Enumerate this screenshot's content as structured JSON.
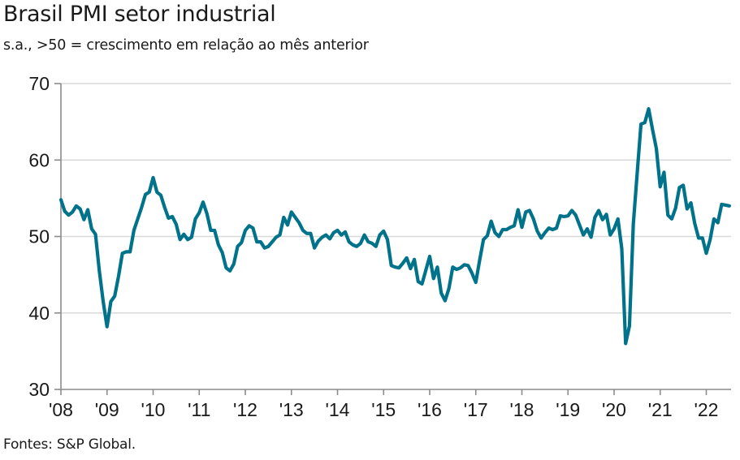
{
  "chart_data": {
    "type": "line",
    "title": "Brasil PMI setor industrial",
    "subtitle": "s.a., >50 = crescimento em relação ao mês anterior",
    "source": "Fontes: S&P Global.",
    "xlabel": "",
    "ylabel": "",
    "ylim": [
      30,
      70
    ],
    "yticks": [
      30,
      40,
      50,
      60,
      70
    ],
    "ytick_labels": [
      "30",
      "40",
      "50",
      "60",
      "70"
    ],
    "xticks": [
      2008,
      2009,
      2010,
      2011,
      2012,
      2013,
      2014,
      2015,
      2016,
      2017,
      2018,
      2019,
      2020,
      2021,
      2022
    ],
    "xtick_labels": [
      "'08",
      "'09",
      "'10",
      "'11",
      "'12",
      "'13",
      "'14",
      "'15",
      "'16",
      "'17",
      "'18",
      "'19",
      "'20",
      "'21",
      "'22"
    ],
    "grid": "horizontal",
    "legend": "none",
    "line_color": "#00728a",
    "series": [
      {
        "name": "Brasil PMI setor industrial",
        "start": "2008-01",
        "frequency": "monthly",
        "values": [
          54.8,
          53.3,
          52.8,
          53.2,
          54.0,
          53.6,
          52.2,
          53.5,
          51.0,
          50.3,
          45.5,
          41.5,
          38.2,
          41.5,
          42.2,
          44.8,
          47.8,
          48.0,
          48.0,
          50.8,
          52.3,
          53.8,
          55.5,
          55.8,
          57.7,
          55.8,
          55.4,
          53.8,
          52.4,
          52.6,
          51.6,
          49.6,
          50.3,
          49.6,
          49.9,
          52.3,
          53.1,
          54.5,
          53.0,
          50.8,
          50.8,
          48.9,
          47.9,
          45.9,
          45.5,
          46.4,
          48.7,
          49.2,
          50.8,
          51.4,
          51.1,
          49.3,
          49.3,
          48.5,
          48.7,
          49.3,
          49.9,
          50.2,
          52.5,
          51.5,
          53.2,
          52.5,
          51.8,
          50.8,
          50.4,
          50.4,
          48.5,
          49.4,
          49.9,
          50.2,
          49.7,
          50.5,
          50.8,
          50.2,
          50.6,
          49.3,
          48.9,
          48.7,
          49.1,
          50.2,
          49.3,
          49.1,
          48.7,
          50.2,
          50.7,
          49.6,
          46.2,
          46.0,
          45.9,
          46.5,
          47.2,
          45.8,
          47.0,
          44.1,
          43.8,
          45.6,
          47.4,
          44.5,
          46.0,
          42.6,
          41.6,
          43.2,
          46.0,
          45.7,
          45.9,
          46.3,
          46.2,
          45.2,
          44.0,
          46.9,
          49.6,
          50.1,
          52.0,
          50.5,
          50.0,
          50.9,
          50.9,
          51.2,
          51.4,
          53.5,
          51.2,
          53.2,
          53.4,
          52.3,
          50.7,
          49.8,
          50.5,
          51.1,
          50.9,
          51.1,
          52.7,
          52.6,
          52.7,
          53.4,
          52.8,
          51.5,
          50.2,
          51.0,
          49.9,
          52.5,
          53.4,
          52.2,
          52.9,
          50.2,
          51.0,
          52.3,
          48.4,
          36.0,
          38.3,
          51.6,
          58.2,
          64.7,
          64.9,
          66.7,
          64.0,
          61.5,
          56.5,
          58.4,
          52.8,
          52.3,
          53.7,
          56.4,
          56.7,
          53.6,
          54.4,
          51.7,
          49.8,
          49.8,
          47.8,
          49.6,
          52.3,
          51.8,
          54.2,
          54.1,
          54.0
        ]
      }
    ]
  }
}
